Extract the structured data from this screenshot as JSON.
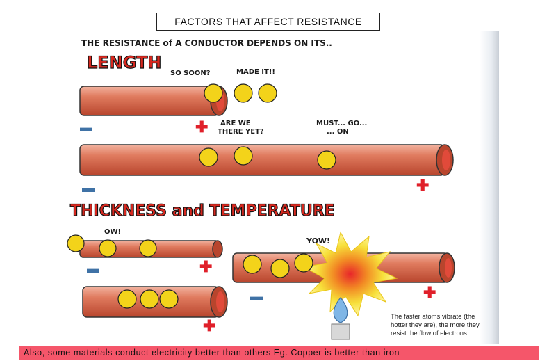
{
  "header": {
    "title": "FACTORS THAT AFFECT RESISTANCE"
  },
  "illustration": {
    "intro": "THE RESISTANCE of A CONDUCTOR DEPENDS ON ITS..",
    "heading_length": "LENGTH",
    "heading_thickness": "THICKNESS and TEMPERATURE",
    "bubbles": {
      "so_soon": "SO SOON?",
      "made_it": "MADE IT!!",
      "are_we_1": "ARE WE",
      "are_we_2": "THERE YET?",
      "must_go_1": "MUST... GO...",
      "must_go_2": "... ON",
      "ow": "OW!",
      "yow": "YOW!"
    },
    "caption_lines": [
      "The faster atoms vibrate (the",
      "hotter they are), the more they",
      "resist the flow of electrons"
    ]
  },
  "footer": {
    "note": "Also, some materials conduct electricity better than others Eg. Copper is better than iron"
  },
  "colors": {
    "wire": "#d9735a",
    "wire_dark": "#b9472e",
    "electron": "#f3d31a",
    "plus": "#e0202a",
    "minus": "#3f72a6",
    "banner": "#f5566a"
  }
}
